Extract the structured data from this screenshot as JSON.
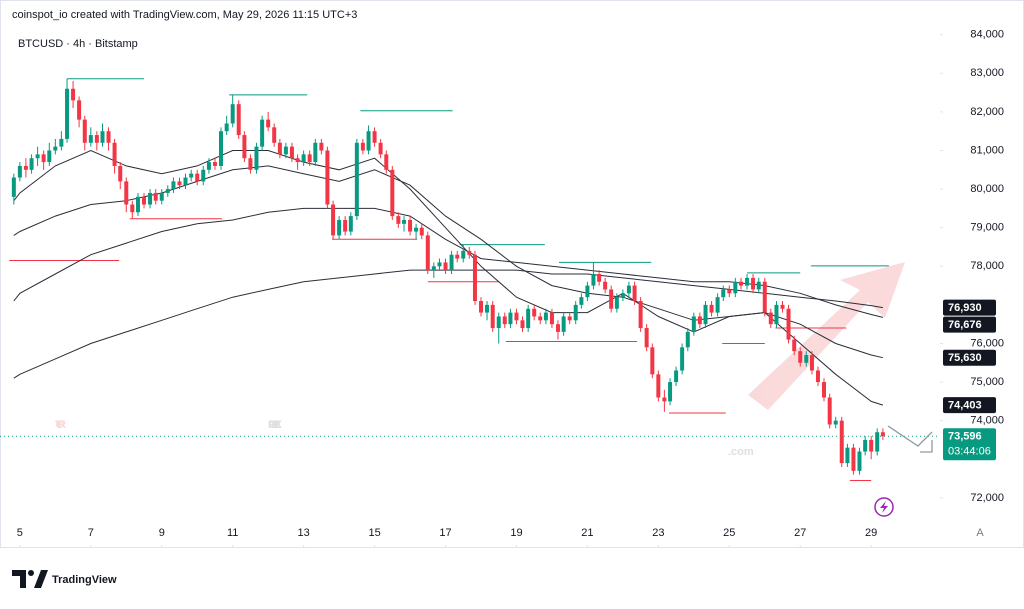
{
  "header": {
    "byline": "coinspot_io created with TradingView.com, May 29, 2026 11:15 UTC+3"
  },
  "chart_data": {
    "type": "candlestick",
    "title": "BTCUSD · 4h · Bitstamp",
    "up_color": "#089981",
    "down_color": "#f23645",
    "xlim": [
      4.44,
      30.94
    ],
    "ylim": [
      71400,
      84200
    ],
    "xticks": [
      5,
      7,
      9,
      11,
      13,
      15,
      17,
      19,
      21,
      23,
      25,
      27,
      29
    ],
    "yticks": [
      {
        "value": 72000,
        "label": "72,000"
      },
      {
        "value": 74000,
        "label": "74,000"
      },
      {
        "value": 75000,
        "label": "75,000"
      },
      {
        "value": 76000,
        "label": "76,000"
      },
      {
        "value": 78000,
        "label": "78,000"
      },
      {
        "value": 79000,
        "label": "79,000"
      },
      {
        "value": 80000,
        "label": "80,000"
      },
      {
        "value": 81000,
        "label": "81,000"
      },
      {
        "value": 82000,
        "label": "82,000"
      },
      {
        "value": 83000,
        "label": "83,000"
      },
      {
        "value": 84000,
        "label": "84,000"
      }
    ],
    "x": [
      4.83,
      5,
      5.17,
      5.33,
      5.5,
      5.67,
      5.83,
      6,
      6.17,
      6.33,
      6.5,
      6.67,
      6.83,
      7,
      7.17,
      7.33,
      7.5,
      7.67,
      7.83,
      8,
      8.17,
      8.33,
      8.5,
      8.67,
      8.83,
      9,
      9.17,
      9.33,
      9.5,
      9.67,
      9.83,
      10,
      10.17,
      10.33,
      10.5,
      10.67,
      10.83,
      11,
      11.17,
      11.33,
      11.5,
      11.67,
      11.83,
      12,
      12.17,
      12.33,
      12.5,
      12.67,
      12.83,
      13,
      13.17,
      13.33,
      13.5,
      13.67,
      13.83,
      14,
      14.17,
      14.33,
      14.5,
      14.67,
      14.83,
      15,
      15.17,
      15.33,
      15.5,
      15.67,
      15.83,
      16,
      16.17,
      16.33,
      16.5,
      16.67,
      16.83,
      17,
      17.17,
      17.33,
      17.5,
      17.67,
      17.83,
      18,
      18.17,
      18.33,
      18.5,
      18.67,
      18.83,
      19,
      19.17,
      19.33,
      19.5,
      19.67,
      19.83,
      20,
      20.17,
      20.33,
      20.5,
      20.67,
      20.83,
      21,
      21.17,
      21.33,
      21.5,
      21.67,
      21.83,
      22,
      22.17,
      22.33,
      22.5,
      22.67,
      22.83,
      23,
      23.17,
      23.33,
      23.5,
      23.67,
      23.83,
      24,
      24.17,
      24.33,
      24.5,
      24.67,
      24.83,
      25,
      25.17,
      25.33,
      25.5,
      25.67,
      25.83,
      26,
      26.17,
      26.33,
      26.5,
      26.67,
      26.83,
      27,
      27.17,
      27.33,
      27.5,
      27.67,
      27.83,
      28,
      28.17,
      28.33,
      28.5,
      28.67,
      28.83,
      29,
      29.17,
      29.33
    ],
    "ohlc": [
      [
        79800,
        80400,
        79600,
        80300
      ],
      [
        80300,
        80700,
        80200,
        80600
      ],
      [
        80600,
        80800,
        80300,
        80500
      ],
      [
        80500,
        80900,
        80400,
        80800
      ],
      [
        80800,
        81100,
        80600,
        80900
      ],
      [
        80900,
        81000,
        80500,
        80700
      ],
      [
        80700,
        81200,
        80600,
        81000
      ],
      [
        81000,
        81300,
        80900,
        81100
      ],
      [
        81100,
        81500,
        81000,
        81300
      ],
      [
        81300,
        82860,
        81200,
        82600
      ],
      [
        82600,
        82800,
        82100,
        82300
      ],
      [
        82300,
        82400,
        81600,
        81800
      ],
      [
        81800,
        81900,
        81000,
        81200
      ],
      [
        81200,
        81600,
        81100,
        81400
      ],
      [
        81400,
        81500,
        81000,
        81200
      ],
      [
        81200,
        81700,
        81100,
        81500
      ],
      [
        81500,
        81600,
        81000,
        81200
      ],
      [
        81200,
        81300,
        80400,
        80600
      ],
      [
        80600,
        80700,
        80000,
        80200
      ],
      [
        80200,
        80300,
        79400,
        79600
      ],
      [
        79600,
        79700,
        79230,
        79400
      ],
      [
        79400,
        79900,
        79300,
        79800
      ],
      [
        79800,
        79900,
        79500,
        79600
      ],
      [
        79600,
        80000,
        79500,
        79900
      ],
      [
        79900,
        80000,
        79600,
        79700
      ],
      [
        79700,
        80000,
        79600,
        79900
      ],
      [
        79900,
        80100,
        79800,
        80000
      ],
      [
        80000,
        80300,
        79900,
        80200
      ],
      [
        80200,
        80300,
        80000,
        80100
      ],
      [
        80100,
        80400,
        80000,
        80300
      ],
      [
        80300,
        80500,
        80200,
        80400
      ],
      [
        80400,
        80500,
        80100,
        80200
      ],
      [
        80200,
        80600,
        80100,
        80500
      ],
      [
        80500,
        80800,
        80400,
        80700
      ],
      [
        80700,
        80800,
        80500,
        80600
      ],
      [
        80600,
        81600,
        80500,
        81500
      ],
      [
        81500,
        81900,
        81400,
        81700
      ],
      [
        81700,
        82440,
        81600,
        82200
      ],
      [
        82200,
        82300,
        81300,
        81400
      ],
      [
        81400,
        81500,
        80700,
        80800
      ],
      [
        80800,
        80900,
        80400,
        80500
      ],
      [
        80500,
        81200,
        80400,
        81100
      ],
      [
        81100,
        81900,
        81000,
        81800
      ],
      [
        81800,
        82000,
        81500,
        81600
      ],
      [
        81600,
        81700,
        81100,
        81200
      ],
      [
        81200,
        81300,
        80800,
        80900
      ],
      [
        80900,
        81200,
        80800,
        81100
      ],
      [
        81100,
        81200,
        80700,
        80800
      ],
      [
        80800,
        80900,
        80500,
        80700
      ],
      [
        80700,
        81000,
        80600,
        80900
      ],
      [
        80900,
        81000,
        80600,
        80700
      ],
      [
        80700,
        81300,
        80600,
        81200
      ],
      [
        81200,
        81300,
        80900,
        81000
      ],
      [
        81000,
        81100,
        79500,
        79600
      ],
      [
        79600,
        79700,
        78700,
        78800
      ],
      [
        78800,
        79300,
        78700,
        79200
      ],
      [
        79200,
        79300,
        78800,
        78900
      ],
      [
        78900,
        79400,
        78800,
        79300
      ],
      [
        79300,
        81300,
        79200,
        81200
      ],
      [
        81200,
        81300,
        80900,
        81000
      ],
      [
        81000,
        81650,
        80900,
        81500
      ],
      [
        81500,
        81600,
        81100,
        81200
      ],
      [
        81200,
        81300,
        80800,
        80900
      ],
      [
        80900,
        81000,
        80400,
        80500
      ],
      [
        80500,
        80600,
        79200,
        79300
      ],
      [
        79300,
        79400,
        79000,
        79100
      ],
      [
        79100,
        79300,
        78900,
        79200
      ],
      [
        79200,
        79300,
        78800,
        78900
      ],
      [
        78900,
        79100,
        78700,
        79000
      ],
      [
        79000,
        79100,
        78700,
        78800
      ],
      [
        78800,
        78900,
        77800,
        77900
      ],
      [
        77900,
        78100,
        77700,
        78000
      ],
      [
        78000,
        78200,
        77900,
        78100
      ],
      [
        78100,
        78200,
        77800,
        77900
      ],
      [
        77900,
        78400,
        77800,
        78300
      ],
      [
        78300,
        78400,
        78100,
        78200
      ],
      [
        78200,
        78560,
        78100,
        78400
      ],
      [
        78400,
        78500,
        78200,
        78300
      ],
      [
        78300,
        78400,
        77000,
        77100
      ],
      [
        77100,
        77200,
        76700,
        76800
      ],
      [
        76800,
        77100,
        76600,
        77000
      ],
      [
        77000,
        77100,
        76300,
        76400
      ],
      [
        76400,
        76800,
        76000,
        76700
      ],
      [
        76700,
        76800,
        76400,
        76500
      ],
      [
        76500,
        76900,
        76400,
        76800
      ],
      [
        76800,
        76900,
        76500,
        76600
      ],
      [
        76600,
        76700,
        76300,
        76400
      ],
      [
        76400,
        77000,
        76300,
        76900
      ],
      [
        76900,
        77000,
        76600,
        76700
      ],
      [
        76700,
        76800,
        76500,
        76600
      ],
      [
        76600,
        76900,
        76500,
        76800
      ],
      [
        76800,
        76900,
        76400,
        76500
      ],
      [
        76500,
        76600,
        76100,
        76300
      ],
      [
        76300,
        76800,
        76200,
        76700
      ],
      [
        76700,
        76800,
        76500,
        76600
      ],
      [
        76600,
        77100,
        76500,
        77000
      ],
      [
        77000,
        77300,
        76900,
        77200
      ],
      [
        77200,
        77600,
        77100,
        77500
      ],
      [
        77500,
        78100,
        77400,
        77800
      ],
      [
        77800,
        77900,
        77500,
        77600
      ],
      [
        77600,
        77700,
        77300,
        77400
      ],
      [
        77400,
        77500,
        76800,
        76900
      ],
      [
        76900,
        77300,
        76800,
        77200
      ],
      [
        77200,
        77400,
        77100,
        77300
      ],
      [
        77300,
        77600,
        77200,
        77500
      ],
      [
        77500,
        77600,
        77000,
        77100
      ],
      [
        77100,
        77200,
        76300,
        76400
      ],
      [
        76400,
        76500,
        75800,
        75900
      ],
      [
        75900,
        76000,
        75100,
        75200
      ],
      [
        75200,
        75300,
        74500,
        74600
      ],
      [
        74600,
        74800,
        74230,
        74500
      ],
      [
        74500,
        75100,
        74400,
        75000
      ],
      [
        75000,
        75400,
        74900,
        75300
      ],
      [
        75300,
        76000,
        75200,
        75900
      ],
      [
        75900,
        76400,
        75800,
        76300
      ],
      [
        76300,
        76800,
        76200,
        76700
      ],
      [
        76700,
        76800,
        76400,
        76500
      ],
      [
        76500,
        77100,
        76400,
        77000
      ],
      [
        77000,
        77100,
        76700,
        76800
      ],
      [
        76800,
        77300,
        76700,
        77200
      ],
      [
        77200,
        77500,
        77100,
        77400
      ],
      [
        77400,
        77500,
        77200,
        77300
      ],
      [
        77300,
        77700,
        77200,
        77600
      ],
      [
        77600,
        77700,
        77400,
        77500
      ],
      [
        77500,
        77800,
        77400,
        77700
      ],
      [
        77700,
        77800,
        77300,
        77400
      ],
      [
        77400,
        77700,
        77300,
        77600
      ],
      [
        77600,
        77700,
        76700,
        76800
      ],
      [
        76800,
        76900,
        76400,
        76500
      ],
      [
        76500,
        77100,
        76400,
        77000
      ],
      [
        77000,
        77100,
        76800,
        76900
      ],
      [
        76900,
        77000,
        76000,
        76100
      ],
      [
        76100,
        76200,
        75700,
        75800
      ],
      [
        75800,
        75900,
        75400,
        75500
      ],
      [
        75500,
        75800,
        75400,
        75700
      ],
      [
        75700,
        75800,
        75200,
        75300
      ],
      [
        75300,
        75400,
        74900,
        75000
      ],
      [
        75000,
        75100,
        74500,
        74600
      ],
      [
        74600,
        74700,
        73800,
        73900
      ],
      [
        73900,
        74100,
        73800,
        74000
      ],
      [
        74000,
        74100,
        72800,
        72900
      ],
      [
        72900,
        73400,
        72800,
        73300
      ],
      [
        73300,
        73400,
        72600,
        72700
      ],
      [
        72700,
        73300,
        72600,
        73200
      ],
      [
        73200,
        73600,
        73100,
        73500
      ],
      [
        73500,
        73600,
        73000,
        73200
      ],
      [
        73200,
        73800,
        73100,
        73700
      ],
      [
        73700,
        73800,
        73500,
        73596
      ]
    ],
    "ma_x": [
      4.83,
      5,
      6,
      7,
      8,
      9,
      10,
      11,
      12,
      13,
      14,
      15,
      16,
      17,
      18,
      19,
      20,
      21,
      22,
      23,
      24,
      25,
      26,
      27,
      28,
      29,
      29.33
    ],
    "moving_averages": [
      {
        "color": "#2a2e39",
        "values": [
          79700,
          79900,
          80600,
          81000,
          80600,
          80400,
          80600,
          81000,
          81000,
          80700,
          80500,
          80800,
          80000,
          79000,
          78000,
          77200,
          76800,
          76800,
          77300,
          76700,
          76300,
          76700,
          76800,
          76000,
          75200,
          74500,
          74403
        ]
      },
      {
        "color": "#2a2e39",
        "values": [
          78800,
          78900,
          79300,
          79600,
          79700,
          79900,
          80200,
          80500,
          80600,
          80400,
          80200,
          80500,
          80100,
          79300,
          78700,
          78000,
          77500,
          77300,
          77200,
          76900,
          76600,
          76700,
          76800,
          76500,
          76000,
          75700,
          75630
        ]
      },
      {
        "color": "#2a2e39",
        "values": [
          77100,
          77300,
          77800,
          78300,
          78600,
          78900,
          79100,
          79200,
          79400,
          79500,
          79500,
          79500,
          79300,
          78700,
          78200,
          78100,
          78000,
          77900,
          77800,
          77700,
          77600,
          77600,
          77500,
          77300,
          77000,
          76750,
          76676
        ]
      },
      {
        "color": "#2a2e39",
        "values": [
          75100,
          75200,
          75600,
          76000,
          76300,
          76600,
          76900,
          77200,
          77400,
          77600,
          77700,
          77800,
          77900,
          77900,
          77900,
          77900,
          77800,
          77800,
          77700,
          77600,
          77500,
          77400,
          77300,
          77200,
          77100,
          76980,
          76930
        ]
      }
    ],
    "levels": [
      {
        "value": 82860,
        "x": [
          6.33,
          8.5
        ],
        "color": "#089981"
      },
      {
        "value": 82440,
        "x": [
          10.9,
          13.1
        ],
        "color": "#089981"
      },
      {
        "value": 82030,
        "x": [
          14.6,
          17.2
        ],
        "color": "#089981"
      },
      {
        "value": 79230,
        "x": [
          8.1,
          10.7
        ],
        "color": "#f23645"
      },
      {
        "value": 78700,
        "x": [
          13.8,
          16.2
        ],
        "color": "#f23645"
      },
      {
        "value": 78150,
        "x": [
          4.7,
          7.8
        ],
        "color": "#f23645"
      },
      {
        "value": 78560,
        "x": [
          17.4,
          19.8
        ],
        "color": "#089981"
      },
      {
        "value": 78100,
        "x": [
          20.2,
          22.8
        ],
        "color": "#089981"
      },
      {
        "value": 77600,
        "x": [
          16.5,
          18.5
        ],
        "color": "#f23645"
      },
      {
        "value": 76050,
        "x": [
          18.7,
          22.4
        ],
        "color": "#f23645"
      },
      {
        "value": 74200,
        "x": [
          23.3,
          24.9
        ],
        "color": "#f23645"
      },
      {
        "value": 76000,
        "x": [
          24.8,
          26.0
        ],
        "color": "#f23645"
      },
      {
        "value": 77830,
        "x": [
          25.5,
          27.0
        ],
        "color": "#089981"
      },
      {
        "value": 78010,
        "x": [
          27.3,
          29.5
        ],
        "color": "#089981"
      },
      {
        "value": 76400,
        "x": [
          26.3,
          28.3
        ],
        "color": "#f23645"
      },
      {
        "value": 72450,
        "x": [
          28.4,
          29.0
        ],
        "color": "#f23645"
      }
    ],
    "price_labels": [
      {
        "value": 76930,
        "label": "76,930",
        "color": "#131722"
      },
      {
        "value": 76676,
        "label": "76,676",
        "color": "#131722"
      },
      {
        "value": 75630,
        "label": "75,630",
        "color": "#131722"
      },
      {
        "value": 74403,
        "label": "74,403",
        "color": "#131722"
      },
      {
        "value": 73596,
        "label": "73,596",
        "color": "#089981",
        "countdown": "03:44:06"
      }
    ],
    "watermark": {
      "part1": "TOR",
      "part2": "FOREX",
      "part3": ".com"
    },
    "autoscale_button": "A"
  },
  "footer": {
    "brand": "TradingView"
  }
}
